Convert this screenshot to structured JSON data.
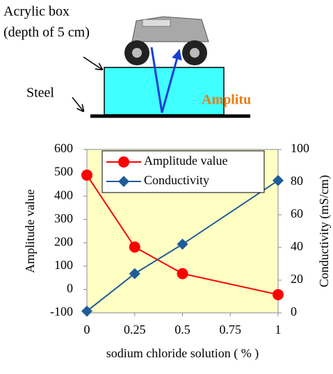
{
  "chart_data": {
    "type": "line",
    "xlabel": "sodium chloride solution ( % )",
    "ylabel": "Amplitude value",
    "y2label": "Conductivity (mS/cm)",
    "x": [
      0,
      0.25,
      0.5,
      1
    ],
    "series": [
      {
        "name": "Amplitude value",
        "color": "#ff0000",
        "marker": "circle",
        "values": [
          490,
          182,
          68,
          -22
        ]
      },
      {
        "name": "Conductivity",
        "color": "#1f5c99",
        "marker": "diamond",
        "axis": "y2",
        "values": [
          1,
          24,
          42,
          81
        ]
      }
    ],
    "xlim": [
      0,
      1
    ],
    "xticks": [
      0,
      0.25,
      0.5,
      0.75,
      1
    ],
    "ylim": [
      -100,
      600
    ],
    "yticks": [
      -100,
      0,
      100,
      200,
      300,
      400,
      500,
      600
    ],
    "y2lim": [
      0,
      100
    ],
    "y2ticks": [
      0,
      20,
      40,
      60,
      80,
      100
    ],
    "background": "#ffffc4",
    "legend": "top"
  },
  "diagram": {
    "acrylic_label": "Acrylic box",
    "acrylic_depth": "(depth of 5 cm)",
    "steel_label": "Steel",
    "amplitude_label": "Amplitu"
  }
}
